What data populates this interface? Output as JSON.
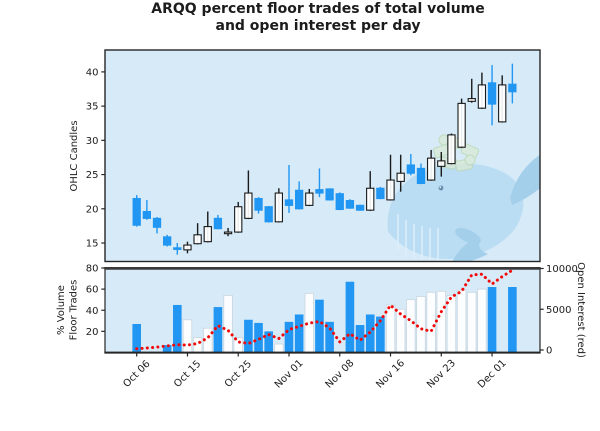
{
  "title": {
    "line1": "ARQQ percent floor trades of total volume",
    "line2": "and open interest per day"
  },
  "axes": {
    "top_left_label": "OHLC Candles",
    "bottom_left_label_line1": "% Volume",
    "bottom_left_label_line2": "Floor Trades",
    "right_label": "Open Interest (red)",
    "top_left_ticks": [
      15,
      20,
      25,
      30,
      35,
      40
    ],
    "bottom_left_ticks": [
      20,
      40,
      60,
      80
    ],
    "right_ticks": [
      0,
      5000,
      10000
    ],
    "x_tick_labels": [
      "Oct 06",
      "Oct 15",
      "Oct 25",
      "Nov 01",
      "Nov 08",
      "Nov 16",
      "Nov 23",
      "Dec 01"
    ],
    "x_tick_indices": [
      0,
      5,
      10,
      15,
      20,
      25,
      30,
      35
    ]
  },
  "colors": {
    "panel_bg": "#d6eaf8",
    "candle_down": "#2196f3",
    "candle_up_fill": "#ffffff",
    "candle_up_edge": "#1a1a1a",
    "bar_blue": "#2196f3",
    "bar_white": "#fcfdfe",
    "bar_white_edge": "#c9d6de",
    "oi_red": "#f00a0a",
    "spine": "#262626",
    "whale": "#b9dcf3",
    "whale_dark": "#9fcde9",
    "money": "#d9e9d2",
    "money_edge": "#b7d6ab"
  },
  "chart_data": [
    {
      "type": "candlestick",
      "panel": "top",
      "ylabel": "OHLC Candles",
      "ylim": [
        12.3,
        43.2
      ],
      "yticks": [
        15,
        20,
        25,
        30,
        35,
        40
      ],
      "x_tick_labels": [
        "Oct 06",
        "Oct 15",
        "Oct 25",
        "Nov 01",
        "Nov 08",
        "Nov 16",
        "Nov 23",
        "Dec 01"
      ],
      "x_tick_indices": [
        0,
        5,
        10,
        15,
        20,
        25,
        30,
        35
      ],
      "ohlc": [
        {
          "o": 21.5,
          "h": 22.0,
          "l": 17.4,
          "c": 17.6
        },
        {
          "o": 19.6,
          "h": 21.3,
          "l": 18.4,
          "c": 18.6
        },
        {
          "o": 18.6,
          "h": 18.8,
          "l": 16.4,
          "c": 17.3
        },
        {
          "o": 15.9,
          "h": 16.2,
          "l": 14.5,
          "c": 14.7
        },
        {
          "o": 14.3,
          "h": 15.0,
          "l": 13.3,
          "c": 14.2
        },
        {
          "o": 14.0,
          "h": 15.2,
          "l": 13.5,
          "c": 14.7
        },
        {
          "o": 14.9,
          "h": 17.9,
          "l": 14.8,
          "c": 16.2
        },
        {
          "o": 15.2,
          "h": 19.6,
          "l": 15.1,
          "c": 17.4
        },
        {
          "o": 18.6,
          "h": 19.1,
          "l": 17.0,
          "c": 17.1
        },
        {
          "o": 16.6,
          "h": 17.2,
          "l": 16.0,
          "c": 16.6
        },
        {
          "o": 16.6,
          "h": 21.0,
          "l": 16.5,
          "c": 20.3
        },
        {
          "o": 18.6,
          "h": 25.6,
          "l": 18.5,
          "c": 22.3
        },
        {
          "o": 21.5,
          "h": 21.7,
          "l": 19.3,
          "c": 19.8
        },
        {
          "o": 20.3,
          "h": 20.4,
          "l": 18.0,
          "c": 18.1
        },
        {
          "o": 18.1,
          "h": 23.0,
          "l": 18.0,
          "c": 22.3
        },
        {
          "o": 21.3,
          "h": 26.4,
          "l": 19.4,
          "c": 20.5
        },
        {
          "o": 22.7,
          "h": 24.0,
          "l": 19.9,
          "c": 20.0
        },
        {
          "o": 20.5,
          "h": 22.9,
          "l": 20.4,
          "c": 22.3
        },
        {
          "o": 22.8,
          "h": 25.9,
          "l": 21.7,
          "c": 22.3
        },
        {
          "o": 22.9,
          "h": 23.0,
          "l": 21.2,
          "c": 21.3
        },
        {
          "o": 22.2,
          "h": 22.4,
          "l": 19.8,
          "c": 19.9
        },
        {
          "o": 21.2,
          "h": 21.4,
          "l": 20.0,
          "c": 20.1
        },
        {
          "o": 20.5,
          "h": 20.6,
          "l": 19.7,
          "c": 19.8
        },
        {
          "o": 19.8,
          "h": 25.5,
          "l": 19.7,
          "c": 23.0
        },
        {
          "o": 23.0,
          "h": 23.2,
          "l": 21.4,
          "c": 21.5
        },
        {
          "o": 21.3,
          "h": 27.9,
          "l": 21.2,
          "c": 24.2
        },
        {
          "o": 24.0,
          "h": 27.9,
          "l": 22.5,
          "c": 25.2
        },
        {
          "o": 26.4,
          "h": 28.0,
          "l": 24.9,
          "c": 25.2
        },
        {
          "o": 25.9,
          "h": 26.6,
          "l": 23.6,
          "c": 23.7
        },
        {
          "o": 24.2,
          "h": 28.6,
          "l": 24.1,
          "c": 27.4
        },
        {
          "o": 26.2,
          "h": 28.3,
          "l": 24.7,
          "c": 27.0
        },
        {
          "o": 26.6,
          "h": 31.0,
          "l": 26.5,
          "c": 30.8
        },
        {
          "o": 29.0,
          "h": 36.1,
          "l": 28.9,
          "c": 35.4
        },
        {
          "o": 35.7,
          "h": 39.0,
          "l": 35.5,
          "c": 36.1
        },
        {
          "o": 34.7,
          "h": 39.9,
          "l": 34.6,
          "c": 38.1
        },
        {
          "o": 38.4,
          "h": 41.0,
          "l": 32.2,
          "c": 35.3
        },
        {
          "o": 32.7,
          "h": 39.5,
          "l": 32.6,
          "c": 38.1
        },
        {
          "o": 38.2,
          "h": 41.2,
          "l": 35.4,
          "c": 37.1
        }
      ]
    },
    {
      "type": "bar",
      "panel": "bottom",
      "name": "% volume floor trades",
      "ylabel": "% Volume Floor Trades",
      "ylim": [
        0,
        80
      ],
      "yticks": [
        20,
        40,
        60,
        80
      ],
      "values": [
        27,
        0,
        0,
        7,
        45,
        31,
        14,
        23,
        43,
        54,
        14,
        31,
        28,
        20,
        8,
        29,
        36,
        56,
        50,
        29,
        0,
        67,
        26,
        36,
        34,
        45,
        41,
        50,
        53,
        57,
        58,
        54,
        59,
        57,
        60,
        62,
        0,
        62
      ],
      "bar_colors": [
        "blue",
        null,
        null,
        "blue",
        "blue",
        "white",
        "white",
        "white",
        "blue",
        "white",
        "white",
        "blue",
        "blue",
        "blue",
        "white",
        "blue",
        "blue",
        "white",
        "blue",
        "blue",
        null,
        "blue",
        "blue",
        "blue",
        "blue",
        "white",
        "white",
        "white",
        "white",
        "white",
        "white",
        "white",
        "white",
        "white",
        "white",
        "blue",
        null,
        "blue"
      ]
    },
    {
      "type": "line",
      "panel": "bottom",
      "name": "open interest",
      "ylabel": "Open Interest (red)",
      "axis": "right",
      "style": "dotted",
      "color": "red",
      "ylim": [
        0,
        10500
      ],
      "yticks": [
        0,
        5000,
        10000
      ],
      "values": [
        150,
        250,
        350,
        500,
        650,
        600,
        800,
        1500,
        3000,
        2400,
        1000,
        800,
        1300,
        1900,
        1400,
        2500,
        2900,
        3300,
        3500,
        2700,
        1000,
        2000,
        1200,
        2200,
        3600,
        5500,
        4400,
        3600,
        2600,
        2300,
        4700,
        6500,
        7200,
        9200,
        9300,
        8100,
        9000,
        9800
      ]
    }
  ]
}
